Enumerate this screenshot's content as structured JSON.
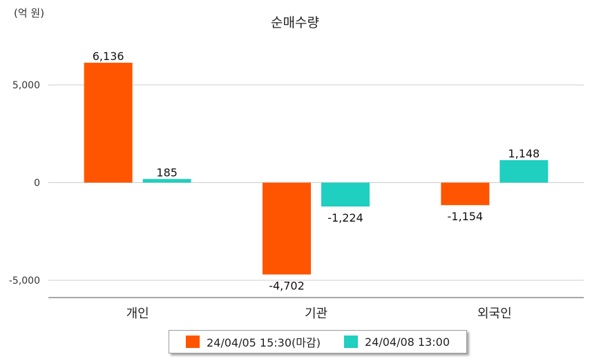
{
  "colors": {
    "series1": "#ff5500",
    "series2": "#1fcfbf",
    "grid": "#cccccc",
    "axis": "#888888"
  },
  "chart_data": {
    "type": "bar",
    "title": "순매수량",
    "unit_label": "(억 원)",
    "categories": [
      "개인",
      "기관",
      "외국인"
    ],
    "series": [
      {
        "name": "24/04/05 15:30(마감)",
        "values": [
          6136,
          -4702,
          -1154
        ],
        "labels": [
          "6,136",
          "-4,702",
          "-1,154"
        ]
      },
      {
        "name": "24/04/08 13:00",
        "values": [
          185,
          -1224,
          1148
        ],
        "labels": [
          "185",
          "-1,224",
          "1,148"
        ]
      }
    ],
    "yticks": [
      5000,
      0,
      -5000
    ],
    "ytick_labels": [
      "5,000",
      "0",
      "-5,000"
    ],
    "ylim": [
      -5800,
      7700
    ],
    "grid": true,
    "legend_position": "bottom"
  }
}
